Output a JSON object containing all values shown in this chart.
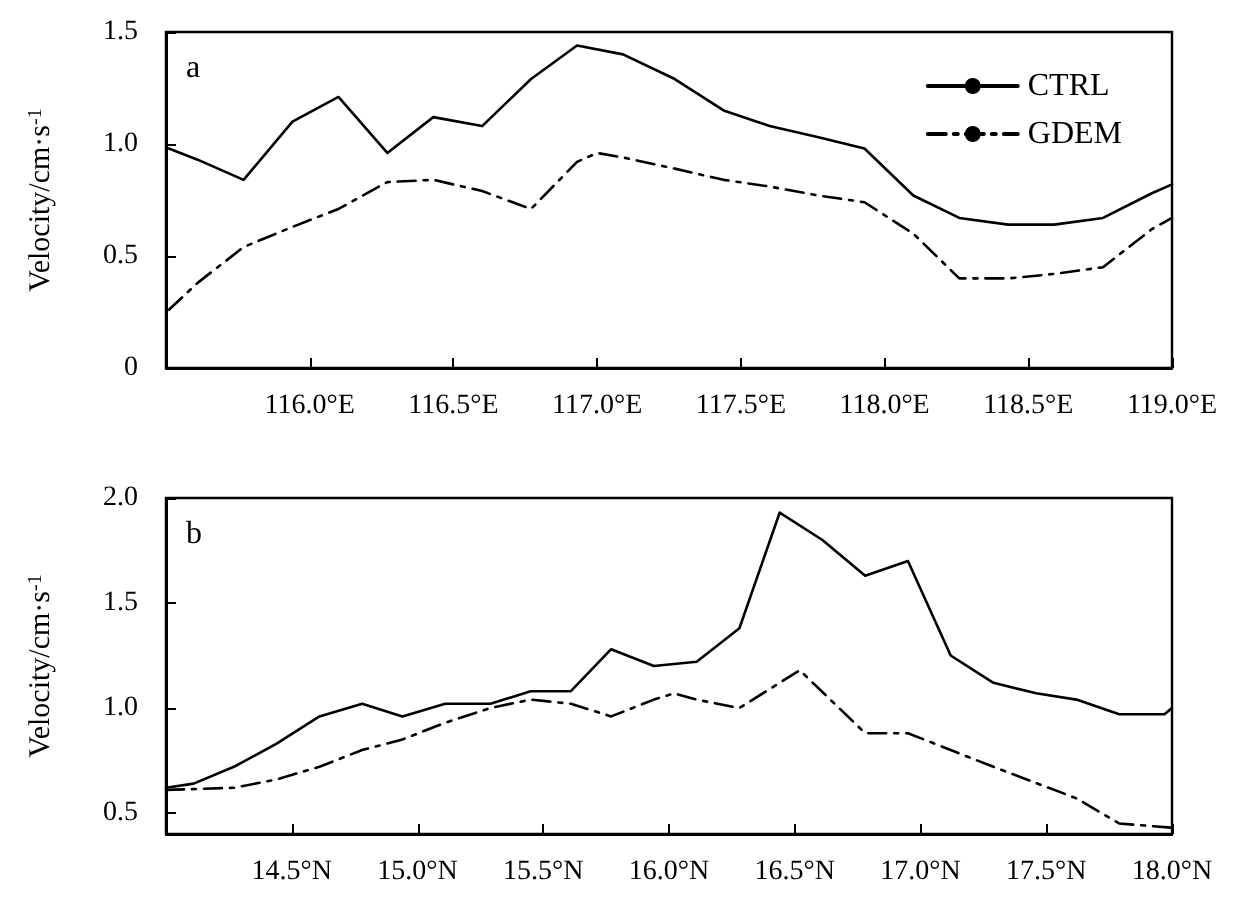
{
  "chart_data": [
    {
      "type": "line",
      "ylabel": "Velocity/cm·s$^{-1}$",
      "annotations": [
        "a"
      ],
      "legend": "top right",
      "grid": false,
      "marker": "none",
      "xlim": [
        115.5,
        119.0
      ],
      "xticks": [
        {
          "value": 116.0,
          "label": "116.0°E"
        },
        {
          "value": 116.5,
          "label": "116.5°E"
        },
        {
          "value": 117.0,
          "label": "117.0°E"
        },
        {
          "value": 117.5,
          "label": "117.5°E"
        },
        {
          "value": 118.0,
          "label": "118.0°E"
        },
        {
          "value": 118.5,
          "label": "118.5°E"
        },
        {
          "value": 119.0,
          "label": "119.0°E"
        }
      ],
      "ylim": [
        0,
        1.5
      ],
      "yticks": [
        0,
        {
          "value": 0.5,
          "label": "0.5"
        },
        {
          "value": 1.0,
          "label": "1.0"
        },
        {
          "value": 1.5,
          "label": "1.5"
        }
      ],
      "series": [
        {
          "name": "CTRL",
          "color": "#000000",
          "line_style": "solid",
          "x": [
            115.51,
            115.61,
            115.77,
            115.94,
            116.1,
            116.27,
            116.43,
            116.6,
            116.77,
            116.93,
            117.09,
            117.27,
            117.44,
            117.6,
            117.77,
            117.93,
            118.1,
            118.26,
            118.43,
            118.59,
            118.76,
            118.93,
            119.0
          ],
          "values": [
            0.98,
            0.93,
            0.84,
            1.1,
            1.21,
            0.96,
            1.12,
            1.08,
            1.29,
            1.44,
            1.4,
            1.29,
            1.15,
            1.08,
            1.03,
            0.98,
            0.77,
            0.67,
            0.64,
            0.64,
            0.67,
            0.78,
            0.82
          ]
        },
        {
          "name": "GDEM",
          "color": "#000000",
          "line_style": "dashed",
          "x": [
            115.51,
            115.61,
            115.77,
            115.94,
            116.1,
            116.27,
            116.43,
            116.6,
            116.77,
            116.93,
            117.0,
            117.09,
            117.27,
            117.44,
            117.6,
            117.77,
            117.93,
            118.1,
            118.26,
            118.43,
            118.59,
            118.76,
            118.93,
            119.0
          ],
          "values": [
            0.26,
            0.38,
            0.54,
            0.63,
            0.71,
            0.83,
            0.84,
            0.79,
            0.71,
            0.92,
            0.96,
            0.94,
            0.89,
            0.84,
            0.81,
            0.77,
            0.74,
            0.6,
            0.4,
            0.4,
            0.42,
            0.45,
            0.62,
            0.67
          ]
        }
      ]
    },
    {
      "type": "line",
      "ylabel": "Velocity/cm·s$^{-1}$",
      "annotations": [
        "b"
      ],
      "legend": false,
      "grid": false,
      "marker": "none",
      "xlim": [
        14.0,
        18.0
      ],
      "xticks": [
        {
          "value": 14.5,
          "label": "14.5°N"
        },
        {
          "value": 15.0,
          "label": "15.0°N"
        },
        {
          "value": 15.5,
          "label": "15.5°N"
        },
        {
          "value": 16.0,
          "label": "16.0°N"
        },
        {
          "value": 16.5,
          "label": "16.5°N"
        },
        {
          "value": 17.0,
          "label": "17.0°N"
        },
        {
          "value": 17.5,
          "label": "17.5°N"
        },
        {
          "value": 18.0,
          "label": "18.0°N"
        }
      ],
      "ylim": [
        0.4,
        2.0
      ],
      "yticks": [
        {
          "value": 0.5,
          "label": "0.5"
        },
        {
          "value": 1.0,
          "label": "1.0"
        },
        {
          "value": 1.5,
          "label": "1.5"
        },
        {
          "value": 2.0,
          "label": "2.0"
        }
      ],
      "series": [
        {
          "color": "#000000",
          "line_style": "solid",
          "x": [
            14.0,
            14.11,
            14.27,
            14.44,
            14.61,
            14.78,
            14.94,
            15.11,
            15.29,
            15.45,
            15.61,
            15.77,
            15.94,
            16.11,
            16.28,
            16.44,
            16.61,
            16.78,
            16.95,
            17.12,
            17.29,
            17.46,
            17.62,
            17.79,
            17.97,
            18.0
          ],
          "values": [
            0.62,
            0.64,
            0.72,
            0.83,
            0.96,
            1.02,
            0.96,
            1.02,
            1.02,
            1.08,
            1.08,
            1.28,
            1.2,
            1.22,
            1.38,
            1.93,
            1.8,
            1.63,
            1.7,
            1.25,
            1.12,
            1.07,
            1.04,
            0.97,
            0.97,
            1.0
          ]
        },
        {
          "color": "#000000",
          "line_style": "dashed",
          "x": [
            14.0,
            14.27,
            14.44,
            14.61,
            14.78,
            14.94,
            15.11,
            15.29,
            15.45,
            15.61,
            15.77,
            15.94,
            16.02,
            16.11,
            16.28,
            16.52,
            16.78,
            16.95,
            17.29,
            17.62,
            17.79,
            18.0
          ],
          "values": [
            0.61,
            0.62,
            0.66,
            0.72,
            0.8,
            0.85,
            0.93,
            1.0,
            1.04,
            1.02,
            0.96,
            1.04,
            1.07,
            1.04,
            1.0,
            1.18,
            0.88,
            0.88,
            0.72,
            0.57,
            0.45,
            0.43
          ]
        }
      ]
    }
  ]
}
